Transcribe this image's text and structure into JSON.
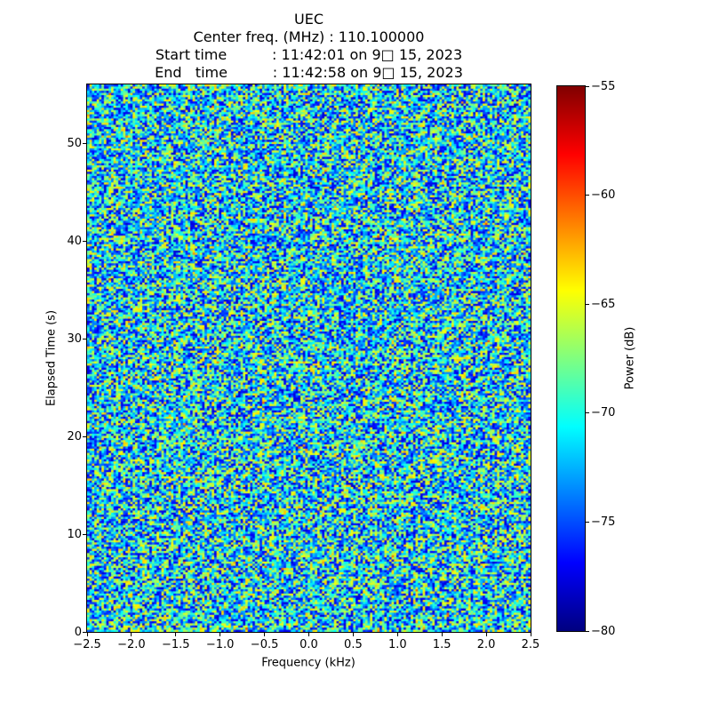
{
  "figure": {
    "background": "#ffffff",
    "text_color": "#000000"
  },
  "chart_data": {
    "type": "heatmap",
    "title_lines": [
      "UEC",
      "Center freq. (MHz) : 110.100000",
      "Start time          : 11:42:01 on 9□ 15, 2023",
      "End   time          : 11:42:58 on 9□ 15, 2023"
    ],
    "x_axis": {
      "label": "Frequency (kHz)",
      "lim": [
        -2.5,
        2.5
      ],
      "tick_values": [
        -2.5,
        -2.0,
        -1.5,
        -1.0,
        -0.5,
        0.0,
        0.5,
        1.0,
        1.5,
        2.0,
        2.5
      ],
      "tick_labels": [
        "−2.5",
        "−2.0",
        "−1.5",
        "−1.0",
        "−0.5",
        "0.0",
        "0.5",
        "1.0",
        "1.5",
        "2.0",
        "2.5"
      ]
    },
    "y_axis": {
      "label": "Elapsed Time (s)",
      "lim": [
        0,
        56
      ],
      "tick_values": [
        0,
        10,
        20,
        30,
        40,
        50
      ],
      "tick_labels": [
        "0",
        "10",
        "20",
        "30",
        "40",
        "50"
      ]
    },
    "colorbar": {
      "label": "Power (dB)",
      "lim": [
        -80,
        -55
      ],
      "tick_values": [
        -55,
        -60,
        -65,
        -70,
        -75,
        -80
      ],
      "tick_labels": [
        "−55",
        "−60",
        "−65",
        "−70",
        "−75",
        "−80"
      ],
      "colormap": "jet",
      "colormap_stops": [
        {
          "v": 0.0,
          "color": "#000080"
        },
        {
          "v": 0.125,
          "color": "#0000ff"
        },
        {
          "v": 0.375,
          "color": "#00ffff"
        },
        {
          "v": 0.625,
          "color": "#ffff00"
        },
        {
          "v": 0.875,
          "color": "#ff0000"
        },
        {
          "v": 1.0,
          "color": "#800000"
        }
      ]
    },
    "values": {
      "description": "uniform random noise floor across entire frequency/time extent, no visible signal lines",
      "approx_mean_dB": -71,
      "approx_range_dB": [
        -78,
        -58
      ],
      "grid_cols": 185,
      "grid_rows": 257,
      "seed": 7
    }
  }
}
